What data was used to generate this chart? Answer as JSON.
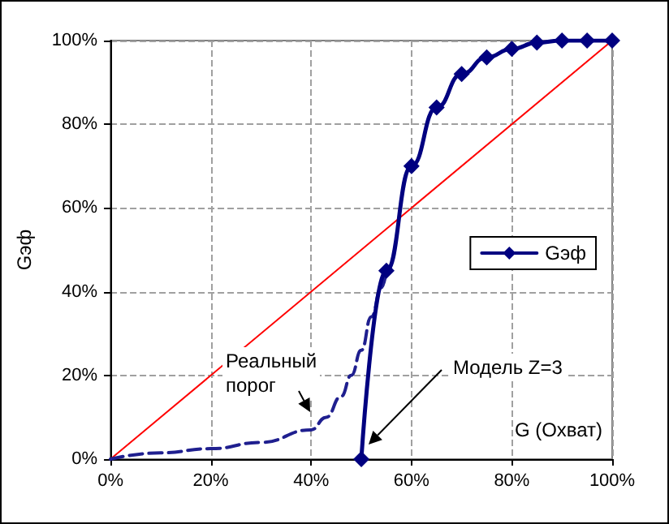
{
  "chart_data": {
    "type": "line",
    "xlabel": "G (Охват)",
    "ylabel": "Gэф",
    "xlim": [
      0,
      100
    ],
    "ylim": [
      0,
      100
    ],
    "xticks": [
      {
        "value": 0,
        "label": "0%"
      },
      {
        "value": 20,
        "label": "20%"
      },
      {
        "value": 40,
        "label": "40%"
      },
      {
        "value": 60,
        "label": "60%"
      },
      {
        "value": 80,
        "label": "80%"
      },
      {
        "value": 100,
        "label": "100%"
      }
    ],
    "yticks": [
      {
        "value": 0,
        "label": "0%"
      },
      {
        "value": 20,
        "label": "20%"
      },
      {
        "value": 40,
        "label": "40%"
      },
      {
        "value": 60,
        "label": "60%"
      },
      {
        "value": 80,
        "label": "80%"
      },
      {
        "value": 100,
        "label": "100%"
      }
    ],
    "grid": true,
    "legend": "right",
    "series": [
      {
        "color": "#ff0000",
        "marker": "none",
        "x": [
          0,
          100
        ],
        "values": [
          0,
          100
        ]
      },
      {
        "color": "#1f1f8f",
        "marker": "none",
        "line_style": "dashed",
        "x": [
          0,
          10,
          20,
          30,
          40,
          43,
          46,
          48,
          50,
          52,
          54,
          55
        ],
        "values": [
          0,
          1.5,
          2.5,
          4,
          7,
          10,
          15,
          20,
          26,
          34,
          41,
          45
        ]
      },
      {
        "name": "Gэф",
        "color": "#000080",
        "marker": "diamond",
        "x": [
          50,
          55,
          60,
          65,
          70,
          75,
          80,
          85,
          90,
          95,
          100
        ],
        "values": [
          0,
          45,
          70,
          84,
          92,
          96,
          98,
          99.5,
          100,
          100,
          100
        ]
      }
    ],
    "annotations": [
      "Реальный\nпорог",
      "Модель Z=3"
    ]
  }
}
